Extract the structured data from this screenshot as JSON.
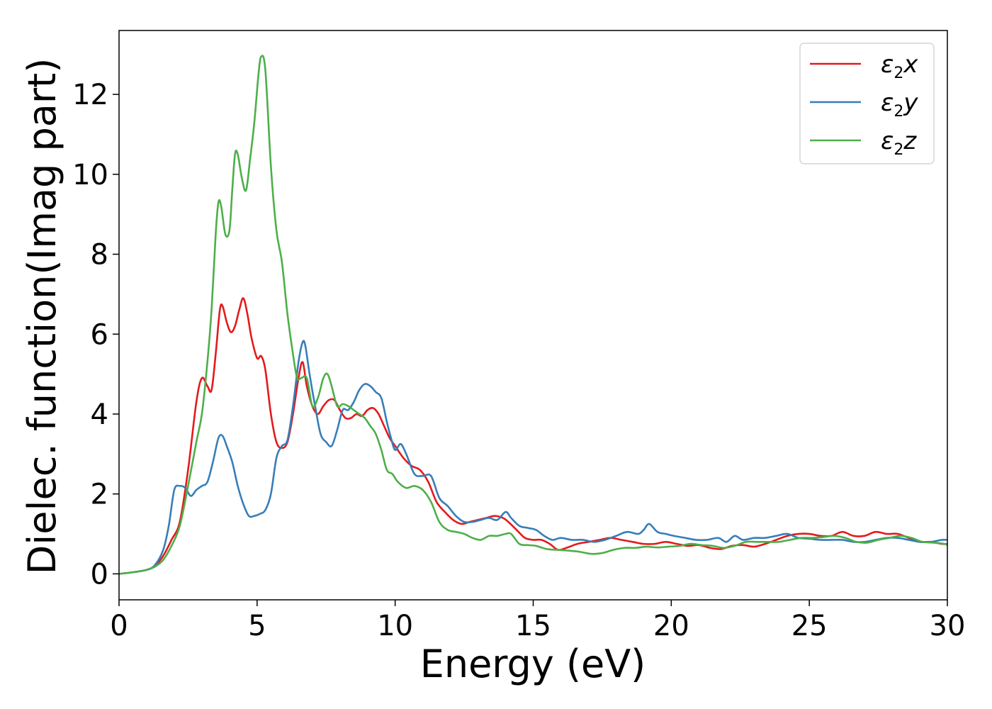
{
  "chart_data": {
    "type": "line",
    "title": "",
    "xlabel": "Energy (eV)",
    "ylabel": "Dielec. function(Imag part)",
    "xlim": [
      0,
      30
    ],
    "ylim": [
      -0.65,
      13.6
    ],
    "xticks": [
      0,
      5,
      10,
      15,
      20,
      25,
      30
    ],
    "yticks": [
      0,
      2,
      4,
      6,
      8,
      10,
      12
    ],
    "grid": false,
    "legend_position": "top-right",
    "series": [
      {
        "name": "ε2x",
        "legend": {
          "base": "ε",
          "sub": "2",
          "var": "x"
        },
        "color": "#e41a1c",
        "x": [
          0,
          0.5,
          1.0,
          1.3,
          1.6,
          1.9,
          2.2,
          2.5,
          2.8,
          3.0,
          3.2,
          3.35,
          3.5,
          3.65,
          3.75,
          3.9,
          4.05,
          4.2,
          4.35,
          4.5,
          4.65,
          4.8,
          5.0,
          5.15,
          5.3,
          5.5,
          5.7,
          5.9,
          6.1,
          6.3,
          6.5,
          6.65,
          6.8,
          7.0,
          7.2,
          7.4,
          7.6,
          7.8,
          8.0,
          8.2,
          8.4,
          8.6,
          8.8,
          9.0,
          9.2,
          9.4,
          9.6,
          9.8,
          10.0,
          10.3,
          10.6,
          10.9,
          11.2,
          11.5,
          11.8,
          12.1,
          12.4,
          12.7,
          13.0,
          13.3,
          13.6,
          13.9,
          14.1,
          14.4,
          14.7,
          15.0,
          15.3,
          15.6,
          15.9,
          16.2,
          16.6,
          17.0,
          17.4,
          17.8,
          18.2,
          18.6,
          19.0,
          19.4,
          19.8,
          20.2,
          20.6,
          21.0,
          21.4,
          21.8,
          22.2,
          22.6,
          23.0,
          23.4,
          23.8,
          24.2,
          24.6,
          25.0,
          25.4,
          25.8,
          26.2,
          26.6,
          27.0,
          27.4,
          27.8,
          28.2,
          28.6,
          29.0,
          29.4,
          29.8,
          30.0
        ],
        "y": [
          0,
          0.04,
          0.1,
          0.2,
          0.45,
          0.85,
          1.3,
          2.6,
          4.3,
          4.9,
          4.7,
          4.6,
          5.5,
          6.6,
          6.7,
          6.3,
          6.05,
          6.2,
          6.6,
          6.9,
          6.5,
          5.9,
          5.4,
          5.45,
          5.1,
          4.0,
          3.3,
          3.15,
          3.3,
          4.0,
          4.9,
          5.3,
          4.7,
          4.2,
          4.0,
          4.2,
          4.35,
          4.35,
          4.1,
          3.9,
          3.9,
          4.0,
          3.95,
          4.1,
          4.15,
          4.0,
          3.7,
          3.4,
          3.2,
          2.9,
          2.7,
          2.6,
          2.3,
          1.8,
          1.55,
          1.35,
          1.25,
          1.3,
          1.35,
          1.4,
          1.45,
          1.4,
          1.3,
          1.1,
          0.9,
          0.85,
          0.85,
          0.75,
          0.6,
          0.65,
          0.75,
          0.8,
          0.85,
          0.9,
          0.85,
          0.8,
          0.75,
          0.75,
          0.8,
          0.75,
          0.7,
          0.72,
          0.65,
          0.62,
          0.7,
          0.72,
          0.68,
          0.75,
          0.85,
          0.95,
          1.0,
          1.0,
          0.95,
          0.95,
          1.05,
          0.95,
          0.95,
          1.05,
          1.0,
          1.0,
          0.9,
          0.8,
          0.8,
          0.75,
          0.75
        ]
      },
      {
        "name": "ε2y",
        "legend": {
          "base": "ε",
          "sub": "2",
          "var": "y"
        },
        "color": "#377eb8",
        "x": [
          0,
          0.5,
          1.0,
          1.3,
          1.6,
          1.8,
          2.0,
          2.2,
          2.4,
          2.6,
          2.8,
          3.0,
          3.2,
          3.4,
          3.6,
          3.75,
          3.9,
          4.1,
          4.3,
          4.5,
          4.7,
          4.9,
          5.1,
          5.3,
          5.5,
          5.7,
          5.9,
          6.1,
          6.3,
          6.5,
          6.65,
          6.75,
          6.9,
          7.1,
          7.3,
          7.5,
          7.7,
          7.9,
          8.1,
          8.3,
          8.5,
          8.7,
          8.9,
          9.1,
          9.3,
          9.5,
          9.7,
          9.85,
          10.0,
          10.2,
          10.4,
          10.7,
          11.0,
          11.3,
          11.6,
          11.9,
          12.2,
          12.5,
          12.8,
          13.1,
          13.4,
          13.7,
          14.0,
          14.2,
          14.5,
          14.8,
          15.1,
          15.4,
          15.7,
          16.0,
          16.4,
          16.8,
          17.2,
          17.6,
          18.0,
          18.4,
          18.8,
          19.0,
          19.2,
          19.5,
          19.8,
          20.1,
          20.5,
          20.9,
          21.3,
          21.7,
          22.0,
          22.3,
          22.6,
          23.0,
          23.4,
          23.8,
          24.2,
          24.6,
          25.0,
          25.4,
          25.8,
          26.2,
          26.6,
          27.0,
          27.4,
          27.8,
          28.2,
          28.6,
          29.0,
          29.4,
          29.8,
          30.0
        ],
        "y": [
          0,
          0.04,
          0.1,
          0.22,
          0.6,
          1.2,
          2.1,
          2.2,
          2.15,
          1.95,
          2.1,
          2.2,
          2.3,
          2.8,
          3.4,
          3.45,
          3.2,
          2.8,
          2.2,
          1.75,
          1.45,
          1.45,
          1.5,
          1.6,
          2.0,
          2.9,
          3.2,
          3.35,
          4.2,
          5.3,
          5.8,
          5.7,
          5.0,
          4.2,
          3.5,
          3.3,
          3.2,
          3.6,
          4.1,
          4.1,
          4.3,
          4.6,
          4.75,
          4.7,
          4.55,
          4.4,
          3.8,
          3.4,
          3.1,
          3.25,
          3.0,
          2.5,
          2.45,
          2.45,
          1.9,
          1.7,
          1.45,
          1.3,
          1.3,
          1.35,
          1.4,
          1.35,
          1.55,
          1.4,
          1.2,
          1.15,
          1.1,
          0.95,
          0.85,
          0.9,
          0.85,
          0.85,
          0.8,
          0.85,
          0.95,
          1.05,
          1.0,
          1.1,
          1.25,
          1.05,
          1.0,
          0.95,
          0.9,
          0.85,
          0.85,
          0.9,
          0.8,
          0.95,
          0.85,
          0.9,
          0.9,
          0.95,
          1.0,
          0.9,
          0.88,
          0.85,
          0.85,
          0.85,
          0.8,
          0.8,
          0.85,
          0.9,
          0.9,
          0.85,
          0.8,
          0.8,
          0.85,
          0.85
        ]
      },
      {
        "name": "ε2z",
        "legend": {
          "base": "ε",
          "sub": "2",
          "var": "z"
        },
        "color": "#4daf4a",
        "x": [
          0,
          0.5,
          1.0,
          1.3,
          1.6,
          1.9,
          2.2,
          2.5,
          2.8,
          3.0,
          3.2,
          3.35,
          3.5,
          3.6,
          3.7,
          3.85,
          4.0,
          4.1,
          4.2,
          4.3,
          4.45,
          4.6,
          4.75,
          4.9,
          5.05,
          5.15,
          5.3,
          5.5,
          5.7,
          5.9,
          6.1,
          6.3,
          6.45,
          6.6,
          6.8,
          7.0,
          7.2,
          7.4,
          7.55,
          7.7,
          7.9,
          8.1,
          8.3,
          8.5,
          8.7,
          8.9,
          9.1,
          9.3,
          9.5,
          9.7,
          9.9,
          10.1,
          10.4,
          10.7,
          11.0,
          11.3,
          11.6,
          11.9,
          12.2,
          12.5,
          12.8,
          13.1,
          13.4,
          13.7,
          14.0,
          14.2,
          14.5,
          14.8,
          15.1,
          15.5,
          15.9,
          16.3,
          16.7,
          17.1,
          17.5,
          17.9,
          18.3,
          18.7,
          19.1,
          19.5,
          19.9,
          20.3,
          20.7,
          21.1,
          21.5,
          21.9,
          22.3,
          22.7,
          23.1,
          23.5,
          23.9,
          24.3,
          24.7,
          25.1,
          25.5,
          25.9,
          26.3,
          26.7,
          27.1,
          27.5,
          27.9,
          28.3,
          28.7,
          29.1,
          29.5,
          29.9,
          30.0
        ],
        "y": [
          0,
          0.04,
          0.1,
          0.18,
          0.35,
          0.7,
          1.2,
          2.2,
          3.3,
          4.0,
          5.3,
          6.6,
          8.5,
          9.3,
          9.2,
          8.5,
          8.6,
          9.6,
          10.5,
          10.5,
          9.9,
          9.6,
          10.4,
          11.3,
          12.5,
          12.95,
          12.6,
          10.2,
          8.6,
          7.8,
          6.5,
          5.5,
          4.9,
          4.9,
          4.9,
          4.2,
          4.4,
          4.9,
          5.0,
          4.7,
          4.2,
          4.25,
          4.2,
          4.1,
          4.0,
          3.9,
          3.7,
          3.5,
          3.1,
          2.6,
          2.5,
          2.3,
          2.15,
          2.2,
          2.1,
          1.8,
          1.3,
          1.1,
          1.05,
          1.0,
          0.9,
          0.85,
          0.95,
          0.95,
          1.0,
          1.0,
          0.75,
          0.72,
          0.7,
          0.62,
          0.6,
          0.58,
          0.55,
          0.5,
          0.52,
          0.6,
          0.65,
          0.65,
          0.68,
          0.66,
          0.68,
          0.7,
          0.75,
          0.72,
          0.7,
          0.65,
          0.7,
          0.8,
          0.8,
          0.8,
          0.8,
          0.85,
          0.9,
          0.9,
          0.92,
          0.95,
          0.9,
          0.8,
          0.78,
          0.85,
          0.9,
          0.95,
          0.9,
          0.8,
          0.78,
          0.75,
          0.72
        ]
      }
    ]
  }
}
